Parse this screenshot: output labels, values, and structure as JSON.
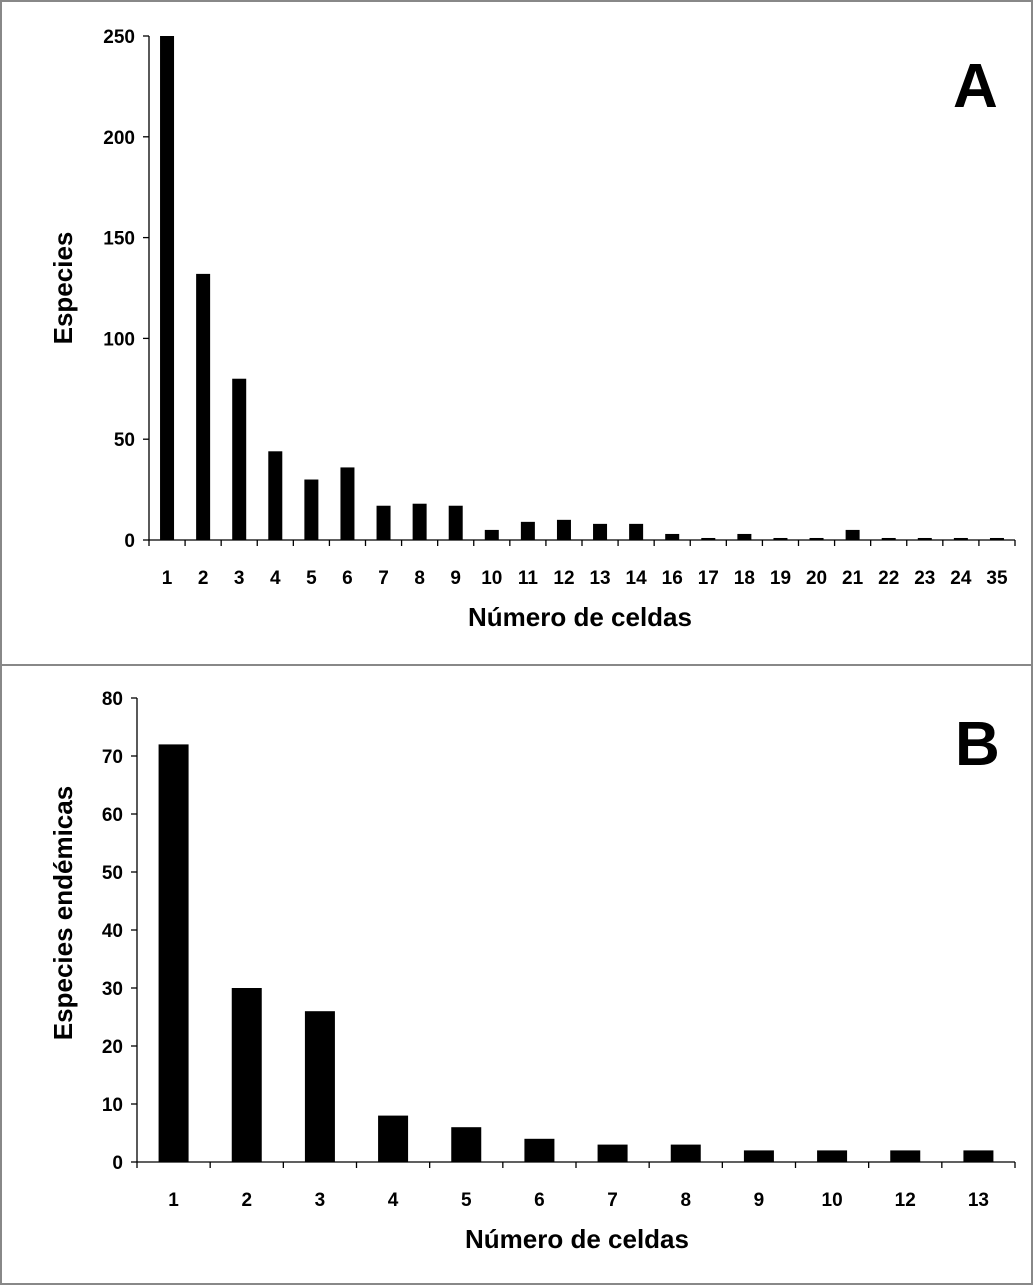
{
  "chart_data": [
    {
      "type": "bar",
      "panel_label": "A",
      "xlabel": "Número de celdas",
      "ylabel": "Especies",
      "categories": [
        "1",
        "2",
        "3",
        "4",
        "5",
        "6",
        "7",
        "8",
        "9",
        "10",
        "11",
        "12",
        "13",
        "14",
        "16",
        "17",
        "18",
        "19",
        "20",
        "21",
        "22",
        "23",
        "24",
        "35"
      ],
      "values": [
        250,
        132,
        80,
        44,
        30,
        36,
        17,
        18,
        17,
        5,
        9,
        10,
        8,
        8,
        3,
        1,
        3,
        1,
        1,
        5,
        1,
        1,
        1,
        1
      ],
      "yticks": [
        0,
        50,
        100,
        150,
        200,
        250
      ],
      "ylim": [
        0,
        250
      ],
      "grid": false,
      "bar_color": "#000000"
    },
    {
      "type": "bar",
      "panel_label": "B",
      "xlabel": "Número de celdas",
      "ylabel": "Especies endémicas",
      "categories": [
        "1",
        "2",
        "3",
        "4",
        "5",
        "6",
        "7",
        "8",
        "9",
        "10",
        "12",
        "13"
      ],
      "values": [
        72,
        30,
        26,
        8,
        6,
        4,
        3,
        3,
        2,
        2,
        2,
        2
      ],
      "yticks": [
        0,
        10,
        20,
        30,
        40,
        50,
        60,
        70,
        80
      ],
      "ylim": [
        0,
        80
      ],
      "grid": false,
      "bar_color": "#000000"
    }
  ]
}
